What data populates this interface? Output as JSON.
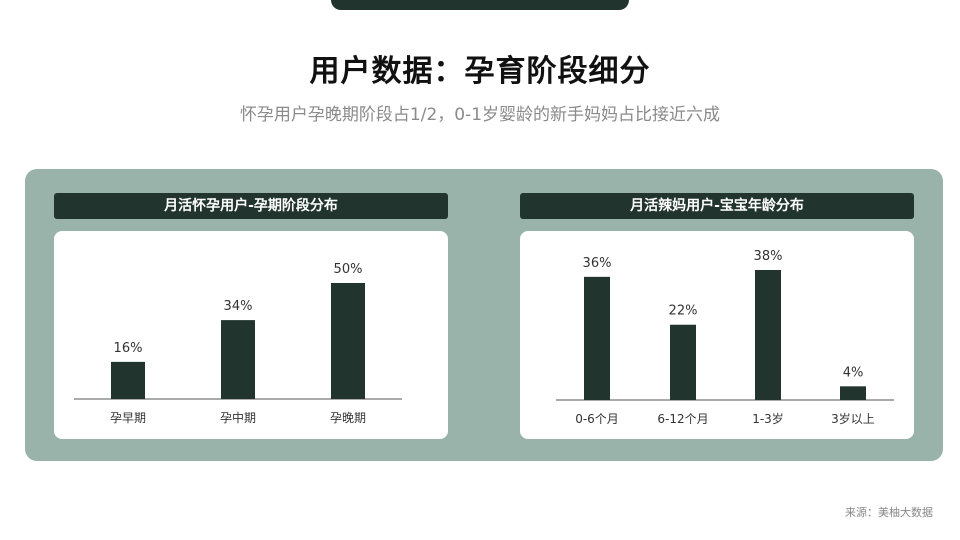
{
  "title": "用户数据：孕育阶段细分",
  "subtitle": "怀孕用户孕晚期阶段占1/2，0-1岁婴龄的新手妈妈占比接近六成",
  "source": "来源：美柚大数据",
  "colors": {
    "bar": "#21342e",
    "panel": "#99b3aa",
    "header": "#21342e"
  },
  "chart_data": [
    {
      "type": "bar",
      "title": "月活怀孕用户-孕期阶段分布",
      "categories": [
        "孕早期",
        "孕中期",
        "孕晚期"
      ],
      "values": [
        16,
        34,
        50
      ],
      "labels": [
        "16%",
        "34%",
        "50%"
      ],
      "ylim": [
        0,
        50
      ],
      "grid": false
    },
    {
      "type": "bar",
      "title": "月活辣妈用户-宝宝年龄分布",
      "categories": [
        "0-6个月",
        "6-12个月",
        "1-3岁",
        "3岁以上"
      ],
      "values": [
        36,
        22,
        38,
        4
      ],
      "labels": [
        "36%",
        "22%",
        "38%",
        "4%"
      ],
      "ylim": [
        0,
        38
      ],
      "grid": false
    }
  ]
}
